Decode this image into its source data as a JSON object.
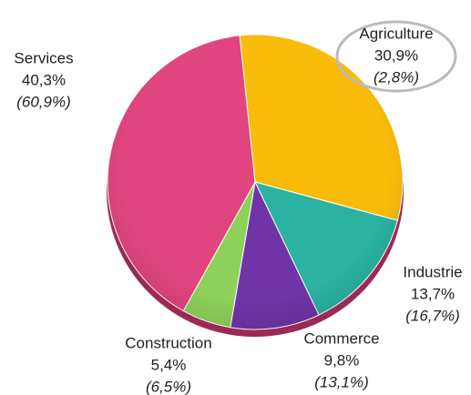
{
  "chart_data": {
    "type": "pie",
    "categories": [
      "Agriculture",
      "Industrie",
      "Commerce",
      "Construction",
      "Services"
    ],
    "values": [
      30.9,
      13.7,
      9.8,
      5.4,
      40.3
    ],
    "value_labels": [
      "30,9%",
      "13,7%",
      "9,8%",
      "5,4%",
      "40,3%"
    ],
    "secondary_value_labels": [
      "(2,8%)",
      "(16,7%)",
      "(13,1%)",
      "(6,5%)",
      "(60,9%)"
    ],
    "colors": [
      "#f9bc0a",
      "#2bb2a0",
      "#7034a6",
      "#8ed15a",
      "#e0457f"
    ],
    "highlight": "Agriculture"
  }
}
